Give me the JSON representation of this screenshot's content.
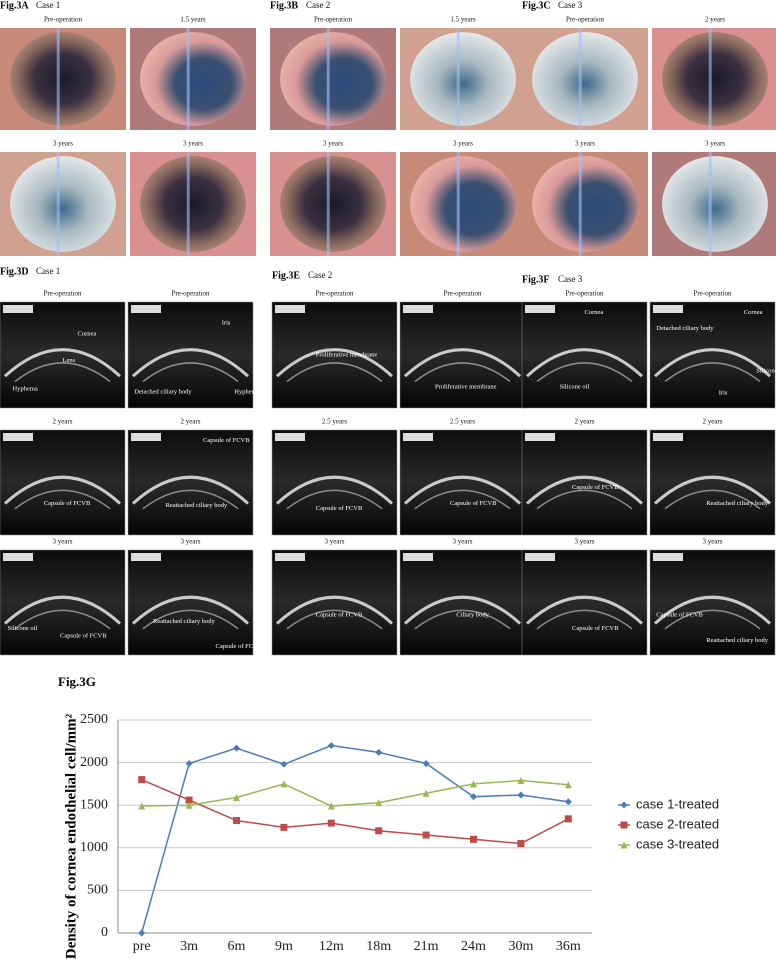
{
  "photo_panels": [
    {
      "label": "Fig.3A",
      "case": "Case 1",
      "captions": [
        "Pre-operation",
        "1.5 years",
        "3 years",
        "3 years"
      ]
    },
    {
      "label": "Fig.3B",
      "case": "Case 2",
      "captions": [
        "Pre-operation",
        "1.5 years",
        "3 years",
        "3 years"
      ]
    },
    {
      "label": "Fig.3C",
      "case": "Case 3",
      "captions": [
        "Pre-operation",
        "2 years",
        "3 years",
        "3 years"
      ]
    }
  ],
  "ultrasound_panels": [
    {
      "label": "Fig.3D",
      "case": "Case 1",
      "images": [
        {
          "caption": "Pre-operation",
          "annotations": [
            "Cornea",
            "Lens",
            "Hyphema"
          ]
        },
        {
          "caption": "Pre-operation",
          "annotations": [
            "Iris",
            "Detached ciliary body",
            "Hyphema"
          ]
        },
        {
          "caption": "2 years",
          "annotations": [
            "Capsule of FCVB"
          ]
        },
        {
          "caption": "2 years",
          "annotations": [
            "Capsule of FCVB",
            "Reattached ciliary body"
          ]
        },
        {
          "caption": "3 years",
          "annotations": [
            "Silicone oil",
            "Capsule of FCVB"
          ]
        },
        {
          "caption": "3 years",
          "annotations": [
            "Reattached ciliary body",
            "Capsule of FCVB"
          ]
        }
      ]
    },
    {
      "label": "Fig.3E",
      "case": "Case 2",
      "images": [
        {
          "caption": "Pre-operation",
          "annotations": [
            "Proliferative membrane"
          ]
        },
        {
          "caption": "Pre-operation",
          "annotations": [
            "Proliferative membrane"
          ]
        },
        {
          "caption": "2.5 years",
          "annotations": [
            "Capsule of FCVB"
          ]
        },
        {
          "caption": "2.5 years",
          "annotations": [
            "Capsule of FCVB"
          ]
        },
        {
          "caption": "3 years",
          "annotations": [
            "Capsule of FCVB"
          ]
        },
        {
          "caption": "3 years",
          "annotations": [
            "Ciliary body"
          ]
        }
      ]
    },
    {
      "label": "Fig.3F",
      "case": "Case 3",
      "images": [
        {
          "caption": "Pre-operation",
          "annotations": [
            "Cornea",
            "Silicone oil"
          ]
        },
        {
          "caption": "Pre-operation",
          "annotations": [
            "Detached ciliary body",
            "Cornea",
            "Iris",
            "Silicone oil"
          ]
        },
        {
          "caption": "2 years",
          "annotations": [
            "Capsule of FCVB"
          ]
        },
        {
          "caption": "2 years",
          "annotations": [
            "Reattached ciliary body"
          ]
        },
        {
          "caption": "3 years",
          "annotations": [
            "Capsule of FCVB"
          ]
        },
        {
          "caption": "3 years",
          "annotations": [
            "Capsule of FCVB",
            "Reattached ciliary body"
          ]
        }
      ]
    }
  ],
  "chart_data": {
    "type": "line",
    "title": "Fig.3G",
    "y_label": "Density of cornea endothelial cell/mm²",
    "categories": [
      "pre",
      "3m",
      "6m",
      "9m",
      "12m",
      "18m",
      "21m",
      "24m",
      "30m",
      "36m"
    ],
    "series": [
      {
        "name": "case 1-treated",
        "color": "#4a7ebb",
        "marker": "diamond",
        "values": [
          0,
          1990,
          2170,
          1980,
          2200,
          2120,
          1990,
          1600,
          1620,
          1540
        ]
      },
      {
        "name": "case 2-treated",
        "color": "#be4b48",
        "marker": "square",
        "values": [
          1800,
          1560,
          1320,
          1240,
          1290,
          1200,
          1150,
          1100,
          1050,
          1340
        ]
      },
      {
        "name": "case 3-treated",
        "color": "#98b954",
        "marker": "triangle",
        "values": [
          1490,
          1500,
          1590,
          1750,
          1490,
          1530,
          1640,
          1750,
          1790,
          1740
        ]
      }
    ],
    "ylim": [
      0,
      2500
    ],
    "yticks": [
      0,
      500,
      1000,
      1500,
      2000,
      2500
    ],
    "grid": true,
    "legend": "right"
  }
}
